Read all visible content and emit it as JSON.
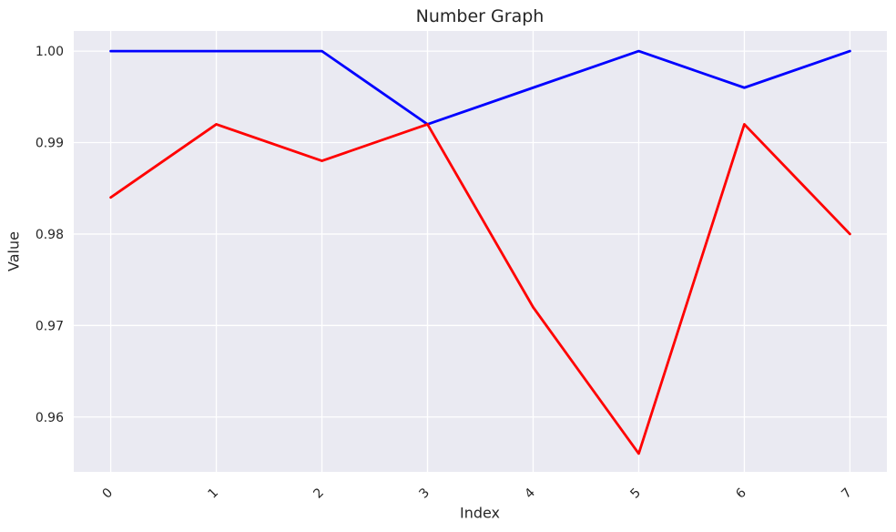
{
  "chart_data": {
    "type": "line",
    "title": "Number Graph",
    "xlabel": "Index",
    "ylabel": "Value",
    "x": [
      0,
      1,
      2,
      3,
      4,
      5,
      6,
      7
    ],
    "series": [
      {
        "name": "blue-series",
        "color": "#0000ff",
        "values": [
          1.0,
          1.0,
          1.0,
          0.992,
          0.996,
          1.0,
          0.996,
          1.0
        ]
      },
      {
        "name": "red-series",
        "color": "#ff0000",
        "values": [
          0.984,
          0.992,
          0.988,
          0.992,
          0.972,
          0.956,
          0.992,
          0.98
        ]
      }
    ],
    "xtick_labels": [
      "0",
      "1",
      "2",
      "3",
      "4",
      "5",
      "6",
      "7"
    ],
    "yticks": [
      1.0,
      0.99,
      0.98,
      0.97,
      0.96
    ],
    "ytick_labels": [
      "1.00",
      "0.99",
      "0.98",
      "0.97",
      "0.96"
    ],
    "xlim": [
      -0.35,
      7.35
    ],
    "ylim": [
      0.954,
      1.0022
    ],
    "grid": true,
    "legend": "none",
    "colors": {
      "plot_background": "#eaeaf2",
      "grid": "#ffffff",
      "text": "#262626"
    }
  }
}
